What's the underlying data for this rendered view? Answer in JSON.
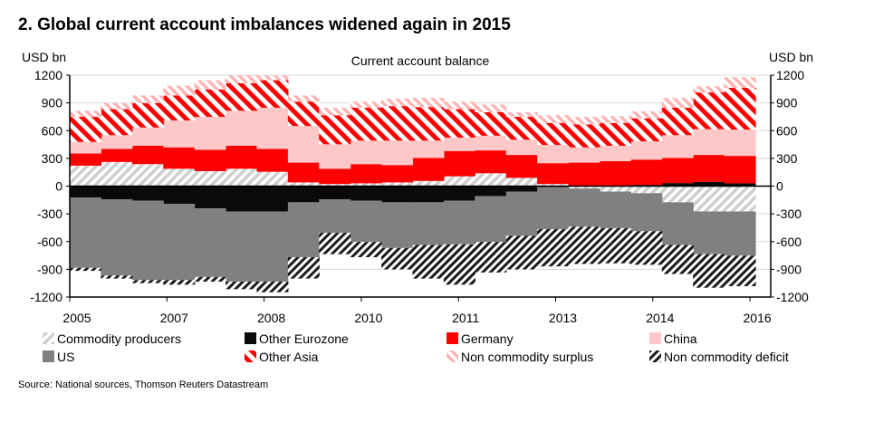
{
  "chart_data": {
    "type": "area",
    "stacked": true,
    "title": "2. Global current account imbalances widened again in 2015",
    "subtitle": "Current account balance",
    "ylabel_left": "USD bn",
    "ylabel_right": "USD bn",
    "ylim": [
      -1200,
      1200
    ],
    "yticks": [
      1200,
      900,
      600,
      300,
      0,
      -300,
      -600,
      -900,
      -1200
    ],
    "x_tick_labels": [
      "2005",
      "2007",
      "2008",
      "2010",
      "2011",
      "2013",
      "2014",
      "2016"
    ],
    "x": [
      "2005H1",
      "2005H2",
      "2006H1",
      "2006H2",
      "2007H1",
      "2007H2",
      "2008H1",
      "2008H2",
      "2009H1",
      "2009H2",
      "2010H1",
      "2010H2",
      "2011H1",
      "2011H2",
      "2012H1",
      "2012H2",
      "2013H1",
      "2013H2",
      "2014H1",
      "2014H2",
      "2015H1",
      "2015H2"
    ],
    "grid": true,
    "legend_placement": "bottom",
    "series": [
      {
        "name": "Commodity producers",
        "color": "#c8c8c8",
        "pattern": "stripes-light",
        "values": [
          221,
          261,
          238,
          188,
          162,
          188,
          155,
          40,
          23,
          30,
          40,
          56,
          106,
          139,
          89,
          23,
          -26,
          -59,
          -76,
          -175,
          -274,
          -274
        ]
      },
      {
        "name": "Other Eurozone",
        "color": "#0a0a0a",
        "pattern": "solid",
        "values": [
          -125,
          -142,
          -158,
          -191,
          -241,
          -274,
          -274,
          -175,
          -142,
          -158,
          -175,
          -175,
          -158,
          -109,
          -59,
          -10,
          0,
          5,
          13,
          33,
          46,
          30
        ]
      },
      {
        "name": "Germany",
        "color": "#ff0000",
        "pattern": "solid",
        "values": [
          132,
          142,
          198,
          231,
          231,
          248,
          248,
          214,
          165,
          208,
          188,
          248,
          274,
          247,
          248,
          225,
          254,
          266,
          274,
          271,
          291,
          297
        ]
      },
      {
        "name": "China",
        "color": "#ffc8c8",
        "pattern": "solid",
        "values": [
          125,
          148,
          198,
          291,
          356,
          379,
          445,
          396,
          264,
          254,
          264,
          188,
          145,
          159,
          165,
          198,
          165,
          165,
          198,
          247,
          280,
          284
        ]
      },
      {
        "name": "US",
        "color": "#808080",
        "pattern": "solid",
        "values": [
          -759,
          -825,
          -858,
          -825,
          -742,
          -759,
          -759,
          -594,
          -363,
          -446,
          -495,
          -462,
          -472,
          -495,
          -479,
          -455,
          -413,
          -396,
          -412,
          -462,
          -462,
          -478
        ]
      },
      {
        "name": "Other Asia",
        "color": "#ff0000",
        "pattern": "stripes-red",
        "values": [
          271,
          281,
          264,
          270,
          297,
          297,
          297,
          264,
          314,
          356,
          373,
          363,
          307,
          254,
          247,
          237,
          248,
          247,
          248,
          297,
          396,
          452
        ]
      },
      {
        "name": "Non commodity surplus",
        "color": "#ffb4b4",
        "pattern": "stripes-pink",
        "values": [
          66,
          66,
          82,
          106,
          99,
          83,
          50,
          66,
          82,
          66,
          82,
          99,
          82,
          82,
          50,
          83,
          82,
          73,
          76,
          106,
          66,
          115
        ]
      },
      {
        "name": "Non commodity deficit",
        "color": "#1a1a1a",
        "pattern": "stripes-dark",
        "values": [
          -33,
          -33,
          -33,
          -50,
          -50,
          -82,
          -115,
          -231,
          -231,
          -165,
          -231,
          -363,
          -436,
          -330,
          -363,
          -403,
          -403,
          -380,
          -363,
          -313,
          -363,
          -330
        ]
      }
    ],
    "source": "Source: National sources, Thomson Reuters Datastream"
  }
}
